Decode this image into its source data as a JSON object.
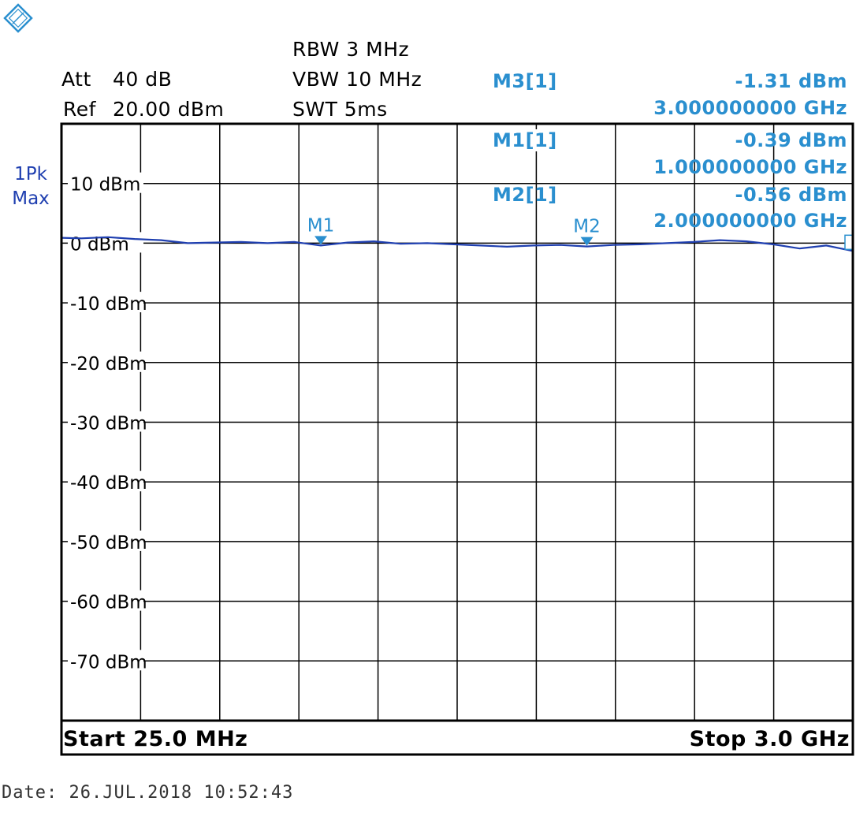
{
  "header": {
    "att_label": "Att",
    "att_value": "40 dB",
    "ref_label": "Ref",
    "ref_value": "20.00 dBm",
    "rbw": "RBW 3 MHz",
    "vbw": "VBW 10 MHz",
    "swt": "SWT 5ms"
  },
  "trace_label": {
    "line1": "1Pk",
    "line2": "Max"
  },
  "markers": [
    {
      "name": "M3[1]",
      "level": "-1.31 dBm",
      "freq": "3.000000000 GHz"
    },
    {
      "name": "M1[1]",
      "level": "-0.39 dBm",
      "freq": "1.000000000 GHz"
    },
    {
      "name": "M2[1]",
      "level": "-0.56 dBm",
      "freq": "2.000000000 GHz"
    }
  ],
  "footer": {
    "start": "Start 25.0 MHz",
    "stop": "Stop 3.0 GHz",
    "date": "Date: 26.JUL.2018  10:52:43"
  },
  "colors": {
    "trace": "#1f3fb0",
    "marker": "#2a8fcf",
    "grid": "#000000",
    "trace_label": "#1f3fb0"
  },
  "chart_data": {
    "type": "line",
    "xlabel": "",
    "ylabel": "",
    "x_unit": "GHz",
    "y_unit": "dBm",
    "xlim": [
      0.025,
      3.0
    ],
    "ylim": [
      -80,
      20
    ],
    "grid": true,
    "ytick_labels": [
      "10 dBm",
      "0 dBm",
      "-10 dBm",
      "-20 dBm",
      "-30 dBm",
      "-40 dBm",
      "-50 dBm",
      "-60 dBm",
      "-70 dBm"
    ],
    "ytick_values": [
      10,
      0,
      -10,
      -20,
      -30,
      -40,
      -50,
      -60,
      -70
    ],
    "series": [
      {
        "x": [
          0.025,
          0.1,
          0.2,
          0.3,
          0.4,
          0.5,
          0.6,
          0.7,
          0.8,
          0.9,
          1.0,
          1.1,
          1.2,
          1.3,
          1.4,
          1.5,
          1.6,
          1.7,
          1.8,
          1.9,
          2.0,
          2.1,
          2.2,
          2.3,
          2.4,
          2.5,
          2.6,
          2.7,
          2.8,
          2.9,
          3.0
        ],
        "y": [
          0.9,
          0.8,
          1.0,
          0.7,
          0.5,
          0.0,
          0.1,
          0.2,
          0.0,
          0.2,
          -0.39,
          0.1,
          0.3,
          -0.1,
          0.0,
          -0.2,
          -0.4,
          -0.6,
          -0.4,
          -0.3,
          -0.56,
          -0.3,
          -0.2,
          0.0,
          0.2,
          0.5,
          0.3,
          -0.2,
          -0.9,
          -0.4,
          -1.31
        ]
      }
    ],
    "markers": [
      {
        "label": "M1",
        "x": 1.0,
        "y": -0.39
      },
      {
        "label": "M2",
        "x": 2.0,
        "y": -0.56
      },
      {
        "label": "M3",
        "x": 3.0,
        "y": -1.31
      }
    ]
  }
}
